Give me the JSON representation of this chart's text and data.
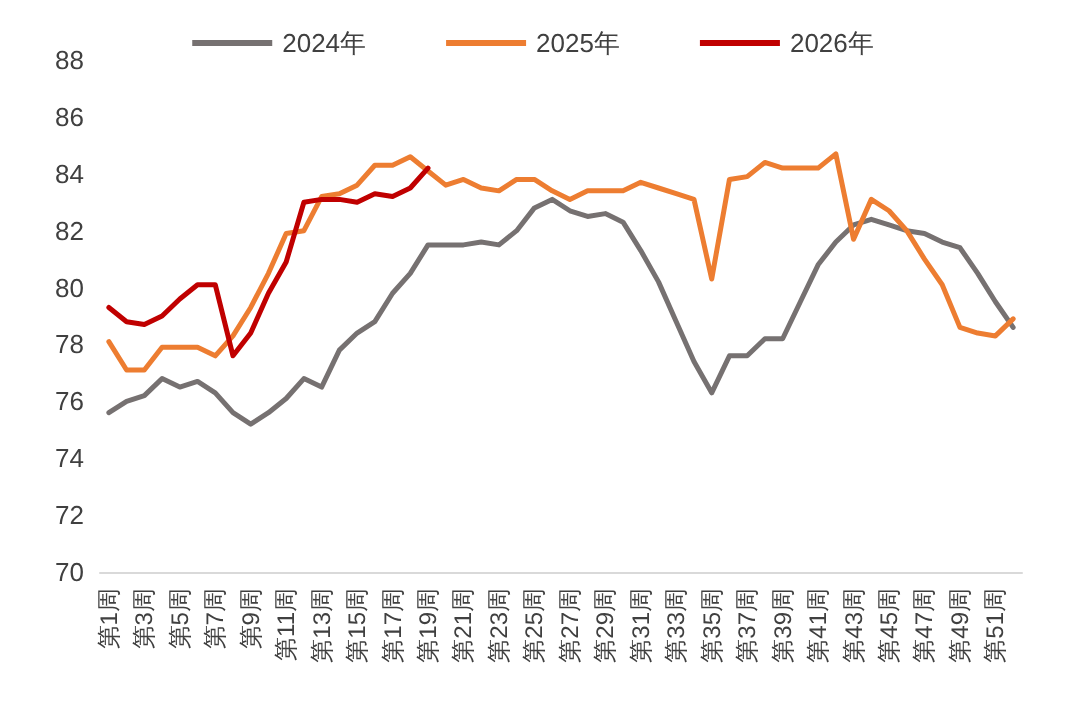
{
  "chart_data": {
    "type": "line",
    "categories": [
      "第1周",
      null,
      "第3周",
      null,
      "第5周",
      null,
      "第7周",
      null,
      "第9周",
      null,
      "第11周",
      null,
      "第13周",
      null,
      "第15周",
      null,
      "第17周",
      null,
      "第19周",
      null,
      "第21周",
      null,
      "第23周",
      null,
      "第25周",
      null,
      "第27周",
      null,
      "第29周",
      null,
      "第31周",
      null,
      "第33周",
      null,
      "第35周",
      null,
      "第37周",
      null,
      "第39周",
      null,
      "第41周",
      null,
      "第43周",
      null,
      "第45周",
      null,
      "第47周",
      null,
      "第49周",
      null,
      "第51周",
      null
    ],
    "series": [
      {
        "name": "2024年",
        "color": "#767171",
        "values": [
          75.6,
          76.0,
          76.2,
          76.8,
          76.5,
          76.7,
          76.3,
          75.6,
          75.2,
          75.6,
          76.1,
          76.8,
          76.5,
          77.8,
          78.4,
          78.8,
          79.8,
          80.5,
          81.5,
          81.5,
          81.5,
          81.6,
          81.5,
          82.0,
          82.8,
          83.1,
          82.7,
          82.5,
          82.6,
          82.3,
          81.3,
          80.2,
          78.8,
          77.4,
          76.3,
          77.6,
          77.6,
          78.2,
          78.2,
          79.5,
          80.8,
          81.6,
          82.2,
          82.4,
          82.2,
          82.0,
          81.9,
          81.6,
          81.4,
          80.5,
          79.5,
          78.6
        ]
      },
      {
        "name": "2025年",
        "color": "#ed7d31",
        "values": [
          78.1,
          77.1,
          77.1,
          77.9,
          77.9,
          77.9,
          77.6,
          78.3,
          79.3,
          80.5,
          81.9,
          82.0,
          83.2,
          83.3,
          83.6,
          84.3,
          84.3,
          84.6,
          84.1,
          83.6,
          83.8,
          83.5,
          83.4,
          83.8,
          83.8,
          83.4,
          83.1,
          83.4,
          83.4,
          83.4,
          83.7,
          83.5,
          83.3,
          83.1,
          80.3,
          83.8,
          83.9,
          84.4,
          84.2,
          84.2,
          84.2,
          84.7,
          81.7,
          83.1,
          82.7,
          82.0,
          81.0,
          80.1,
          78.6,
          78.4,
          78.3,
          78.9
        ]
      },
      {
        "name": "2026年",
        "color": "#c00000",
        "values": [
          79.3,
          78.8,
          78.7,
          79.0,
          79.6,
          80.1,
          80.1,
          77.6,
          78.4,
          79.8,
          80.9,
          83.0,
          83.1,
          83.1,
          83.0,
          83.3,
          83.2,
          83.5,
          84.2,
          null,
          null,
          null,
          null,
          null,
          null,
          null,
          null,
          null,
          null,
          null,
          null,
          null,
          null,
          null,
          null,
          null,
          null,
          null,
          null,
          null,
          null,
          null,
          null,
          null,
          null,
          null,
          null,
          null,
          null,
          null,
          null,
          null
        ]
      }
    ],
    "ylim": [
      70,
      88
    ],
    "yticks": [
      70,
      72,
      74,
      76,
      78,
      80,
      82,
      84,
      86,
      88
    ],
    "grid": false,
    "legend": "top",
    "marker": "none",
    "line_style": "solid"
  }
}
